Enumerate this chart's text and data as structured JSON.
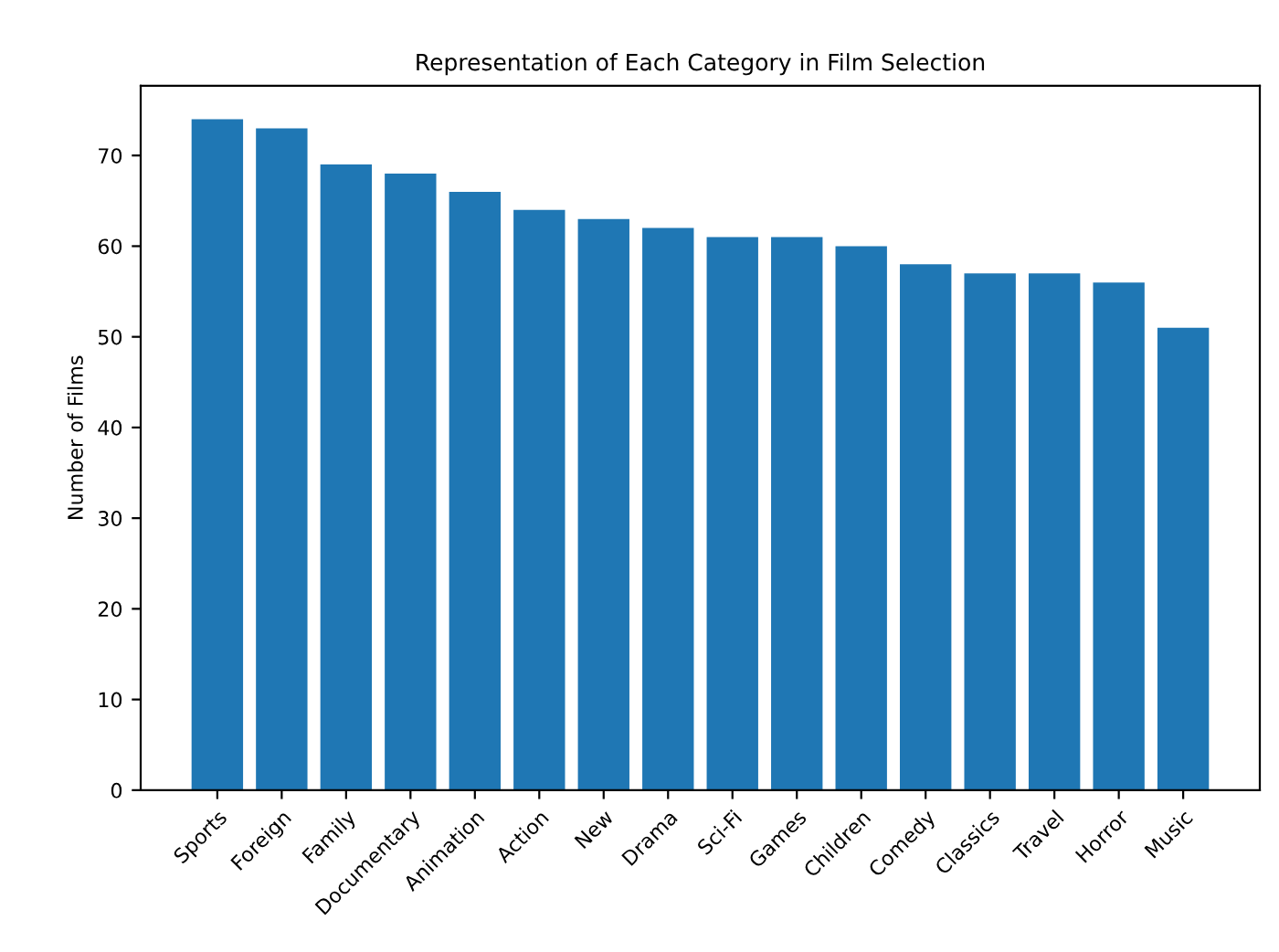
{
  "chart_data": {
    "type": "bar",
    "title": "Representation of Each Category in Film Selection",
    "ylabel": "Number of Films",
    "categories": [
      "Sports",
      "Foreign",
      "Family",
      "Documentary",
      "Animation",
      "Action",
      "New",
      "Drama",
      "Sci-Fi",
      "Games",
      "Children",
      "Comedy",
      "Classics",
      "Travel",
      "Horror",
      "Music"
    ],
    "values": [
      74,
      73,
      69,
      68,
      66,
      64,
      63,
      62,
      61,
      61,
      60,
      58,
      57,
      57,
      56,
      51
    ],
    "color": "#1f77b4",
    "ylim": [
      0,
      77.7
    ],
    "yticks": [
      0,
      10,
      20,
      30,
      40,
      50,
      60,
      70
    ],
    "grid": false,
    "legend": false
  }
}
